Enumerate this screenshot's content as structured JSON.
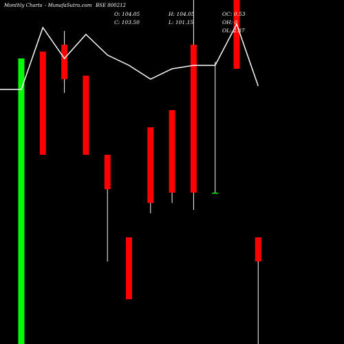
{
  "header": {
    "title": "Monthly Charts",
    "site": "- MunafaSutra.com",
    "symbol": "BSE 800212"
  },
  "ohlc": {
    "open": "O: 104.05",
    "close": "C: 103.50",
    "high": "H: 104.05",
    "low": "L: 101.15",
    "oc": "OC: 0.53",
    "oh": "OH: 0",
    "ol": "OL: 2.87"
  },
  "colors": {
    "background": "#000000",
    "up": "#00ff00",
    "down": "#ff0000",
    "wick": "#ffffff",
    "line": "#ffffff"
  },
  "chart_data": {
    "type": "candlestick",
    "title": "Monthly Charts",
    "ylim": [
      0,
      100
    ],
    "candles": [
      {
        "open": 0,
        "high": 83,
        "low": 0,
        "close": 83
      },
      {
        "open": 85,
        "high": 85,
        "low": 55,
        "close": 55
      },
      {
        "open": 87,
        "high": 91,
        "low": 73,
        "close": 77
      },
      {
        "open": 78,
        "high": 78,
        "low": 55,
        "close": 55
      },
      {
        "open": 55,
        "high": 55,
        "low": 24,
        "close": 45
      },
      {
        "open": 31,
        "high": 31,
        "low": 13,
        "close": 13
      },
      {
        "open": 63,
        "high": 63,
        "low": 38,
        "close": 41
      },
      {
        "open": 68,
        "high": 68,
        "low": 41,
        "close": 44
      },
      {
        "open": 87,
        "high": 100,
        "low": 39,
        "close": 44
      },
      {
        "open": 44,
        "high": 82,
        "low": 44,
        "close": 44
      },
      {
        "open": 100,
        "high": 100,
        "low": 80,
        "close": 80
      },
      {
        "open": 31,
        "high": 31,
        "low": 0,
        "close": 24
      }
    ],
    "line": [
      74,
      92,
      83,
      90,
      84,
      81,
      77,
      80,
      81,
      81,
      93,
      75
    ]
  }
}
